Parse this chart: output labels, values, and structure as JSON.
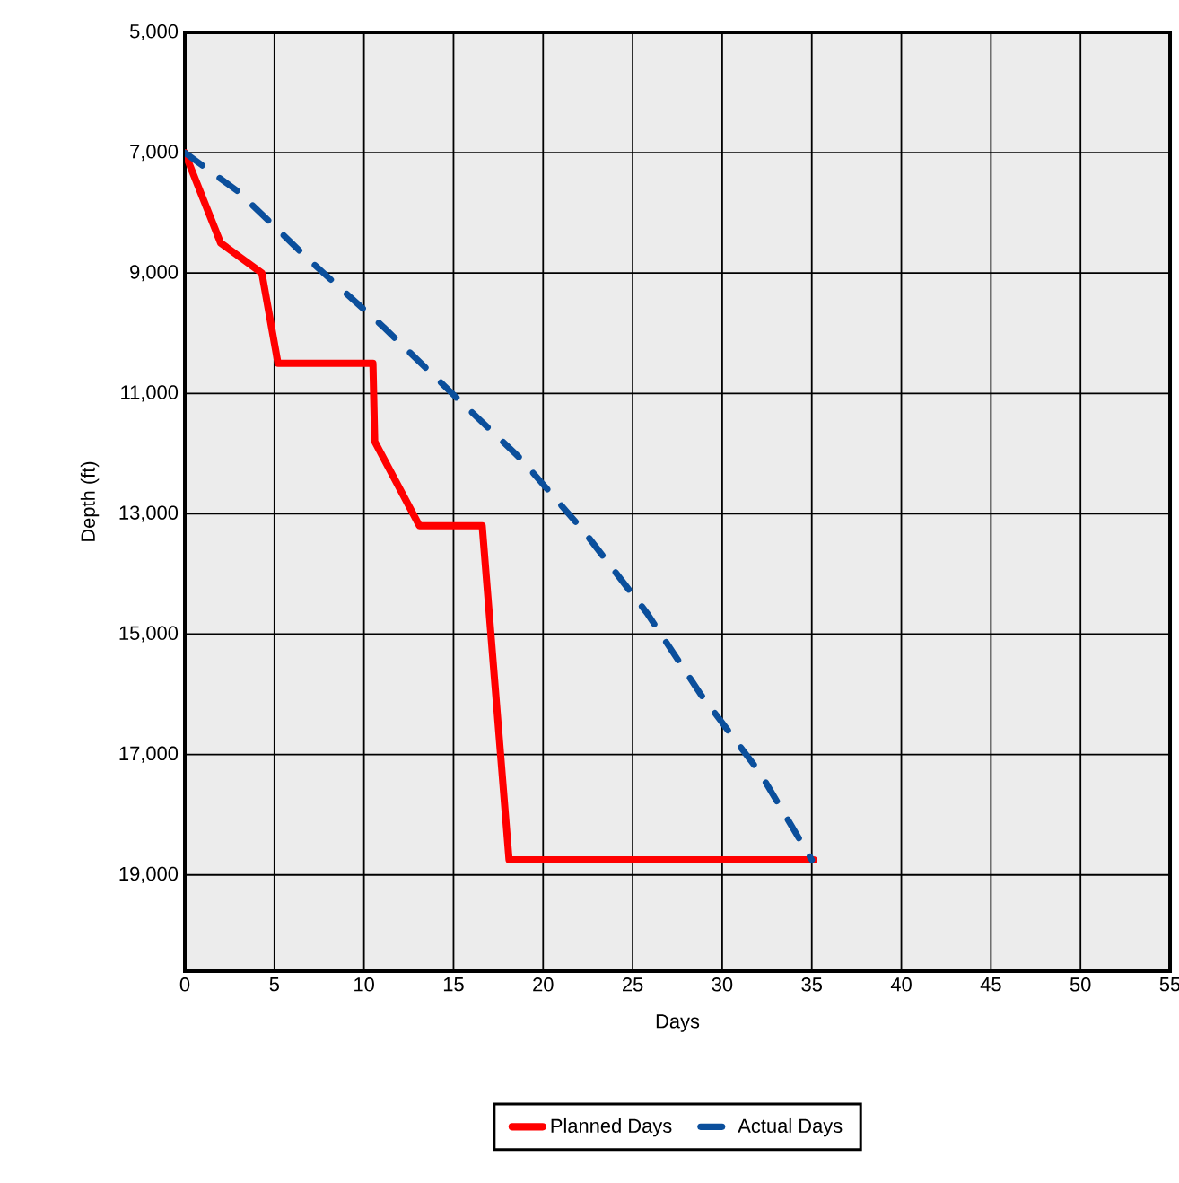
{
  "chart_data": {
    "type": "line",
    "xlabel": "Days",
    "ylabel": "Depth (ft)",
    "xlim": [
      0,
      55
    ],
    "xticks": [
      0,
      5,
      10,
      15,
      20,
      25,
      30,
      35,
      40,
      45,
      50,
      55
    ],
    "ylim": [
      20600,
      5000
    ],
    "yticks": [
      {
        "value": 5000,
        "label": "5,000"
      },
      {
        "value": 7000,
        "label": "7,000"
      },
      {
        "value": 9000,
        "label": "9,000"
      },
      {
        "value": 11000,
        "label": "11,000"
      },
      {
        "value": 13000,
        "label": "13,000"
      },
      {
        "value": 15000,
        "label": "15,000"
      },
      {
        "value": 17000,
        "label": "17,000"
      },
      {
        "value": 19000,
        "label": "19,000"
      }
    ],
    "grid": true,
    "legend": "bottom",
    "series": [
      {
        "name": "Planned Days",
        "color": "#ff0000",
        "line_style": "solid",
        "x": [
          0,
          2,
          4.3,
          5.2,
          10.5,
          10.6,
          13.1,
          16.6,
          18.1,
          35.1
        ],
        "values": [
          7000,
          8500,
          9000,
          10500,
          10500,
          11800,
          13200,
          13200,
          18750,
          18750
        ]
      },
      {
        "name": "Actual Days",
        "color": "#0b4f9c",
        "line_style": "dashed",
        "x": [
          0,
          3,
          7,
          11.1,
          15.1,
          18.8,
          22.3,
          25.8,
          28.8,
          32.1,
          35
        ],
        "values": [
          7000,
          7650,
          8800,
          9900,
          11050,
          12100,
          13300,
          14650,
          16000,
          17300,
          18750
        ]
      }
    ]
  }
}
